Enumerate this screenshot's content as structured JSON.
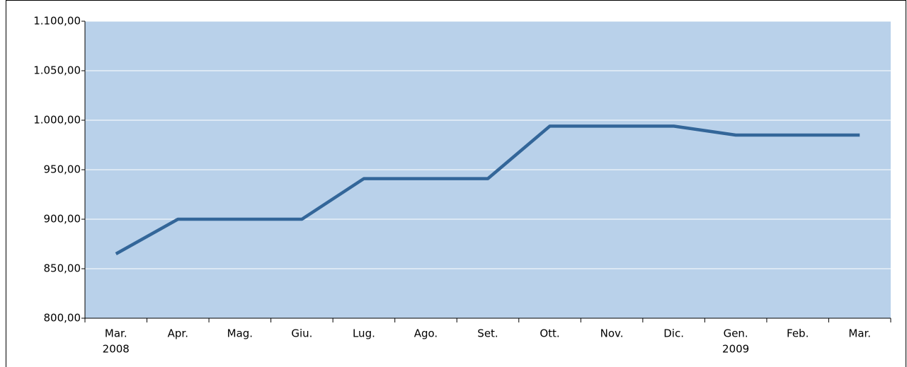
{
  "chart_data": {
    "type": "line",
    "categories": [
      "Mar.",
      "Apr.",
      "Mag.",
      "Giu.",
      "Lug.",
      "Ago.",
      "Set.",
      "Ott.",
      "Nov.",
      "Dic.",
      "Gen.",
      "Feb.",
      "Mar."
    ],
    "year_labels": [
      "2008",
      null,
      null,
      null,
      null,
      null,
      null,
      null,
      null,
      null,
      "2009",
      null,
      null
    ],
    "series": [
      {
        "color": "#336699",
        "values": [
          865,
          900,
          900,
          900,
          941,
          941,
          941,
          994,
          994,
          994,
          985,
          985,
          985
        ]
      }
    ],
    "ylim": [
      800,
      1100
    ],
    "yticks": [
      {
        "value": 800,
        "label": "800,00"
      },
      {
        "value": 850,
        "label": "850,00"
      },
      {
        "value": 900,
        "label": "900,00"
      },
      {
        "value": 950,
        "label": "950,00"
      },
      {
        "value": 1000,
        "label": "1.000,00"
      },
      {
        "value": 1050,
        "label": "1.050,00"
      },
      {
        "value": 1100,
        "label": "1.100,00"
      }
    ],
    "grid": true,
    "plot_background": "#b9d1ea"
  }
}
